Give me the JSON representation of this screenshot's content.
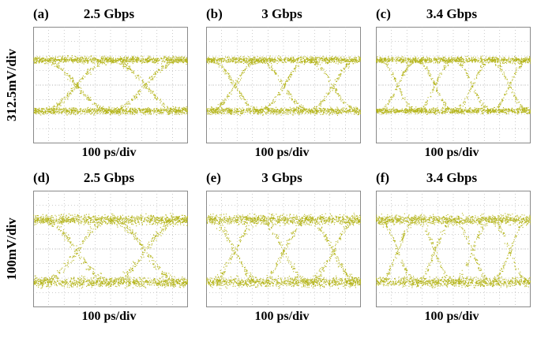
{
  "rows": [
    {
      "volt_div": "312.5mV/div"
    },
    {
      "volt_div": "100mV/div"
    }
  ],
  "panels": [
    {
      "id": "(a)",
      "rate": "2.5 Gbps",
      "time_div": "100 ps/div",
      "row": 0,
      "col": 0,
      "eyes": 2,
      "spread": 0.17
    },
    {
      "id": "(b)",
      "rate": "3 Gbps",
      "time_div": "100 ps/div",
      "row": 0,
      "col": 1,
      "eyes": 3,
      "spread": 0.17
    },
    {
      "id": "(c)",
      "rate": "3.4 Gbps",
      "time_div": "100 ps/div",
      "row": 0,
      "col": 2,
      "eyes": 4,
      "spread": 0.15
    },
    {
      "id": "(d)",
      "rate": "2.5 Gbps",
      "time_div": "100 ps/div",
      "row": 1,
      "col": 0,
      "eyes": 2,
      "spread": 0.2
    },
    {
      "id": "(e)",
      "rate": "3 Gbps",
      "time_div": "100 ps/div",
      "row": 1,
      "col": 1,
      "eyes": 3,
      "spread": 0.2
    },
    {
      "id": "(f)",
      "rate": "3.4 Gbps",
      "time_div": "100 ps/div",
      "row": 1,
      "col": 2,
      "eyes": 4,
      "spread": 0.19
    }
  ],
  "colors": {
    "trace": "#b5b51c",
    "grid": "#9a9a9a",
    "frame": "#8a8a8a"
  }
}
